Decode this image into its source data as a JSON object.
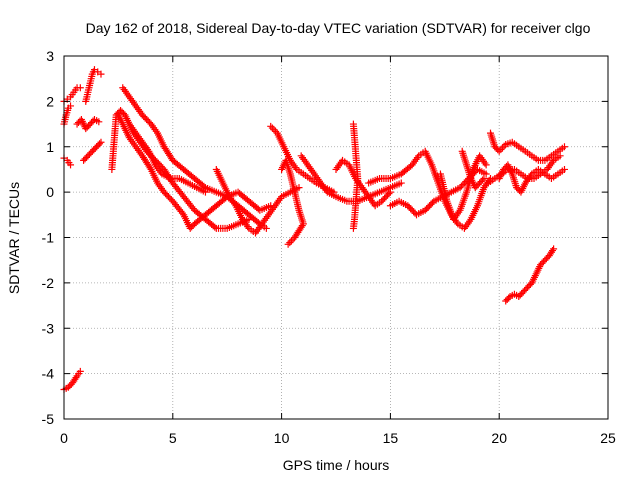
{
  "chart_data": {
    "type": "scatter",
    "title": "Day 162 of 2018, Sidereal Day-to-day VTEC variation (SDTVAR) for receiver clgo",
    "xlabel": "GPS time / hours",
    "ylabel": "SDTVAR / TECUs",
    "xlim": [
      0,
      25
    ],
    "ylim": [
      -5,
      3
    ],
    "xticks": [
      0,
      5,
      10,
      15,
      20,
      25
    ],
    "yticks": [
      -5,
      -4,
      -3,
      -2,
      -1,
      0,
      1,
      2,
      3
    ],
    "xtick_labels": [
      "0",
      "5",
      "10",
      "15",
      "20",
      "25"
    ],
    "ytick_labels": [
      "-5",
      "-4",
      "-3",
      "-2",
      "-1",
      "0",
      "1",
      "2",
      "3"
    ],
    "grid": true,
    "marker": "+",
    "color": "#ff0000",
    "series": [
      {
        "name": "arc-a",
        "points": [
          [
            0.0,
            2.0
          ],
          [
            0.15,
            2.05
          ],
          [
            0.3,
            2.1
          ],
          [
            0.45,
            2.2
          ],
          [
            0.6,
            2.3
          ],
          [
            0.75,
            2.3
          ]
        ]
      },
      {
        "name": "arc-b",
        "points": [
          [
            0.0,
            1.5
          ],
          [
            0.1,
            1.7
          ],
          [
            0.2,
            1.85
          ],
          [
            0.3,
            1.9
          ]
        ]
      },
      {
        "name": "arc-c",
        "points": [
          [
            0.0,
            0.75
          ],
          [
            0.15,
            0.7
          ],
          [
            0.3,
            0.6
          ]
        ]
      },
      {
        "name": "arc-d",
        "points": [
          [
            0.0,
            -4.35
          ],
          [
            0.2,
            -4.3
          ],
          [
            0.4,
            -4.2
          ],
          [
            0.6,
            -4.05
          ],
          [
            0.75,
            -3.95
          ]
        ]
      },
      {
        "name": "arc-e",
        "points": [
          [
            0.6,
            1.5
          ],
          [
            0.8,
            1.6
          ],
          [
            1.0,
            1.4
          ],
          [
            1.2,
            1.5
          ],
          [
            1.4,
            1.6
          ],
          [
            1.6,
            1.55
          ]
        ]
      },
      {
        "name": "arc-f",
        "points": [
          [
            1.0,
            2.0
          ],
          [
            1.1,
            2.2
          ],
          [
            1.2,
            2.4
          ],
          [
            1.3,
            2.6
          ],
          [
            1.4,
            2.7
          ],
          [
            1.55,
            2.65
          ],
          [
            1.7,
            2.6
          ]
        ]
      },
      {
        "name": "arc-g",
        "points": [
          [
            0.9,
            0.7
          ],
          [
            1.1,
            0.8
          ],
          [
            1.3,
            0.9
          ],
          [
            1.5,
            1.0
          ],
          [
            1.7,
            1.1
          ]
        ]
      },
      {
        "name": "arc-h",
        "points": [
          [
            2.2,
            0.5
          ],
          [
            2.25,
            0.8
          ],
          [
            2.3,
            1.1
          ],
          [
            2.35,
            1.4
          ],
          [
            2.4,
            1.7
          ],
          [
            2.6,
            1.8
          ],
          [
            2.8,
            1.7
          ],
          [
            3.0,
            1.5
          ],
          [
            3.2,
            1.3
          ],
          [
            3.5,
            1.1
          ],
          [
            3.8,
            0.9
          ],
          [
            4.2,
            0.7
          ],
          [
            4.6,
            0.5
          ],
          [
            5.0,
            0.2
          ],
          [
            5.5,
            -0.1
          ],
          [
            6.0,
            -0.4
          ],
          [
            6.5,
            -0.6
          ],
          [
            7.0,
            -0.8
          ],
          [
            7.5,
            -0.8
          ],
          [
            8.0,
            -0.7
          ],
          [
            8.5,
            -0.6
          ]
        ]
      },
      {
        "name": "arc-i",
        "points": [
          [
            2.5,
            1.7
          ],
          [
            2.8,
            1.4
          ],
          [
            3.0,
            1.2
          ],
          [
            3.3,
            1.0
          ],
          [
            3.6,
            0.8
          ],
          [
            4.0,
            0.5
          ],
          [
            4.3,
            0.2
          ],
          [
            4.6,
            0.0
          ],
          [
            5.0,
            -0.2
          ],
          [
            5.5,
            -0.5
          ],
          [
            5.8,
            -0.8
          ],
          [
            6.0,
            -0.7
          ],
          [
            6.5,
            -0.5
          ],
          [
            7.0,
            -0.3
          ],
          [
            7.5,
            -0.1
          ],
          [
            8.0,
            0.0
          ],
          [
            8.5,
            -0.2
          ],
          [
            9.0,
            -0.4
          ],
          [
            9.5,
            -0.3
          ]
        ]
      },
      {
        "name": "arc-j",
        "points": [
          [
            2.7,
            2.3
          ],
          [
            3.0,
            2.1
          ],
          [
            3.3,
            1.9
          ],
          [
            3.6,
            1.7
          ],
          [
            4.0,
            1.5
          ],
          [
            4.3,
            1.3
          ],
          [
            4.6,
            1.0
          ],
          [
            5.0,
            0.7
          ],
          [
            5.5,
            0.5
          ],
          [
            6.0,
            0.3
          ],
          [
            6.5,
            0.1
          ],
          [
            7.0,
            0.0
          ],
          [
            7.5,
            -0.1
          ],
          [
            8.0,
            -0.3
          ],
          [
            8.5,
            -0.5
          ],
          [
            9.0,
            -0.7
          ],
          [
            9.3,
            -0.8
          ]
        ]
      },
      {
        "name": "arc-k",
        "points": [
          [
            3.0,
            1.5
          ],
          [
            3.3,
            1.3
          ],
          [
            3.6,
            1.1
          ],
          [
            3.9,
            0.9
          ],
          [
            4.2,
            0.6
          ],
          [
            4.5,
            0.4
          ],
          [
            4.9,
            0.3
          ],
          [
            5.3,
            0.3
          ],
          [
            5.7,
            0.2
          ],
          [
            6.1,
            0.1
          ],
          [
            6.5,
            0.0
          ]
        ]
      },
      {
        "name": "arc-l",
        "points": [
          [
            7.0,
            0.5
          ],
          [
            7.3,
            0.2
          ],
          [
            7.6,
            -0.1
          ],
          [
            7.9,
            -0.3
          ],
          [
            8.2,
            -0.6
          ],
          [
            8.5,
            -0.8
          ],
          [
            8.8,
            -0.9
          ],
          [
            9.1,
            -0.7
          ],
          [
            9.4,
            -0.5
          ],
          [
            9.7,
            -0.3
          ],
          [
            10.0,
            -0.1
          ],
          [
            10.4,
            0.0
          ],
          [
            10.8,
            0.1
          ]
        ]
      },
      {
        "name": "arc-m",
        "points": [
          [
            9.5,
            1.45
          ],
          [
            9.8,
            1.3
          ],
          [
            10.1,
            1.0
          ],
          [
            10.4,
            0.7
          ],
          [
            10.7,
            0.5
          ],
          [
            11.0,
            0.4
          ],
          [
            11.3,
            0.3
          ],
          [
            11.6,
            0.2
          ],
          [
            12.0,
            0.1
          ],
          [
            12.4,
            0.0
          ]
        ]
      },
      {
        "name": "arc-n",
        "points": [
          [
            10.0,
            0.5
          ],
          [
            10.2,
            0.7
          ],
          [
            10.4,
            0.4
          ],
          [
            10.6,
            0.0
          ],
          [
            10.8,
            -0.4
          ],
          [
            11.0,
            -0.7
          ],
          [
            10.6,
            -1.0
          ],
          [
            10.3,
            -1.15
          ]
        ]
      },
      {
        "name": "arc-o",
        "points": [
          [
            10.9,
            0.8
          ],
          [
            11.2,
            0.6
          ],
          [
            11.5,
            0.4
          ],
          [
            11.8,
            0.2
          ],
          [
            12.1,
            0.0
          ],
          [
            12.5,
            -0.1
          ],
          [
            13.0,
            -0.2
          ],
          [
            13.5,
            -0.2
          ],
          [
            14.0,
            -0.1
          ],
          [
            14.5,
            0.0
          ],
          [
            15.0,
            0.1
          ],
          [
            15.5,
            0.2
          ]
        ]
      },
      {
        "name": "arc-p",
        "points": [
          [
            12.5,
            0.5
          ],
          [
            12.8,
            0.7
          ],
          [
            13.1,
            0.6
          ],
          [
            13.4,
            0.3
          ],
          [
            13.7,
            0.1
          ],
          [
            14.0,
            -0.1
          ],
          [
            14.3,
            -0.3
          ],
          [
            14.6,
            -0.2
          ],
          [
            15.0,
            0.0
          ]
        ]
      },
      {
        "name": "arc-q",
        "points": [
          [
            13.3,
            1.5
          ],
          [
            13.35,
            1.2
          ],
          [
            13.4,
            0.9
          ],
          [
            13.45,
            0.6
          ],
          [
            13.5,
            0.3
          ],
          [
            13.45,
            0.0
          ],
          [
            13.4,
            -0.3
          ],
          [
            13.35,
            -0.6
          ],
          [
            13.3,
            -0.8
          ]
        ]
      },
      {
        "name": "arc-r",
        "points": [
          [
            14.0,
            0.2
          ],
          [
            14.5,
            0.3
          ],
          [
            15.0,
            0.3
          ],
          [
            15.5,
            0.4
          ],
          [
            16.0,
            0.6
          ],
          [
            16.3,
            0.8
          ],
          [
            16.6,
            0.9
          ],
          [
            16.9,
            0.6
          ],
          [
            17.2,
            0.2
          ],
          [
            17.5,
            -0.2
          ],
          [
            17.8,
            -0.5
          ],
          [
            18.1,
            -0.7
          ],
          [
            18.4,
            -0.8
          ],
          [
            18.7,
            -0.6
          ],
          [
            19.0,
            -0.3
          ],
          [
            19.3,
            0.1
          ],
          [
            19.6,
            0.3
          ]
        ]
      },
      {
        "name": "arc-s",
        "points": [
          [
            15.0,
            -0.3
          ],
          [
            15.4,
            -0.2
          ],
          [
            15.8,
            -0.3
          ],
          [
            16.2,
            -0.5
          ],
          [
            16.6,
            -0.4
          ],
          [
            17.0,
            -0.2
          ],
          [
            17.4,
            -0.1
          ],
          [
            17.8,
            0.0
          ],
          [
            18.2,
            0.1
          ],
          [
            18.6,
            0.3
          ],
          [
            19.0,
            0.5
          ],
          [
            19.4,
            0.4
          ]
        ]
      },
      {
        "name": "arc-t",
        "points": [
          [
            17.3,
            0.4
          ],
          [
            17.6,
            -0.2
          ],
          [
            17.9,
            -0.6
          ],
          [
            18.2,
            -0.4
          ],
          [
            18.5,
            0.0
          ],
          [
            18.8,
            0.5
          ],
          [
            19.1,
            0.8
          ],
          [
            19.4,
            0.6
          ]
        ]
      },
      {
        "name": "arc-u",
        "points": [
          [
            18.3,
            0.9
          ],
          [
            18.5,
            0.6
          ],
          [
            18.7,
            0.3
          ],
          [
            18.9,
            0.1
          ],
          [
            19.1,
            0.2
          ],
          [
            19.3,
            0.3
          ]
        ]
      },
      {
        "name": "arc-v",
        "points": [
          [
            19.6,
            1.3
          ],
          [
            19.8,
            1.0
          ],
          [
            20.0,
            0.9
          ],
          [
            20.3,
            1.05
          ],
          [
            20.6,
            1.1
          ],
          [
            20.9,
            1.0
          ],
          [
            21.2,
            0.9
          ],
          [
            21.5,
            0.8
          ],
          [
            21.8,
            0.7
          ],
          [
            22.1,
            0.7
          ],
          [
            22.4,
            0.8
          ],
          [
            22.7,
            0.9
          ],
          [
            23.0,
            1.0
          ]
        ]
      },
      {
        "name": "arc-w",
        "points": [
          [
            19.5,
            0.2
          ],
          [
            19.8,
            0.3
          ],
          [
            20.1,
            0.4
          ],
          [
            20.4,
            0.5
          ],
          [
            20.7,
            0.5
          ],
          [
            21.0,
            0.4
          ],
          [
            21.3,
            0.3
          ],
          [
            21.6,
            0.3
          ],
          [
            21.9,
            0.4
          ],
          [
            22.2,
            0.5
          ],
          [
            22.5,
            0.7
          ],
          [
            22.8,
            0.8
          ]
        ]
      },
      {
        "name": "arc-x",
        "points": [
          [
            20.0,
            0.3
          ],
          [
            20.2,
            0.5
          ],
          [
            20.4,
            0.6
          ],
          [
            20.6,
            0.4
          ],
          [
            20.8,
            0.1
          ],
          [
            21.0,
            0.0
          ],
          [
            21.2,
            0.2
          ],
          [
            21.5,
            0.4
          ],
          [
            21.8,
            0.5
          ],
          [
            22.1,
            0.4
          ],
          [
            22.4,
            0.3
          ],
          [
            22.7,
            0.4
          ],
          [
            23.0,
            0.5
          ]
        ]
      },
      {
        "name": "arc-y",
        "points": [
          [
            20.3,
            -2.4
          ],
          [
            20.5,
            -2.3
          ],
          [
            20.7,
            -2.25
          ],
          [
            20.9,
            -2.3
          ],
          [
            21.1,
            -2.2
          ],
          [
            21.3,
            -2.1
          ],
          [
            21.5,
            -2.0
          ],
          [
            21.7,
            -1.8
          ],
          [
            21.9,
            -1.6
          ],
          [
            22.1,
            -1.5
          ],
          [
            22.3,
            -1.4
          ],
          [
            22.5,
            -1.25
          ]
        ]
      }
    ]
  }
}
